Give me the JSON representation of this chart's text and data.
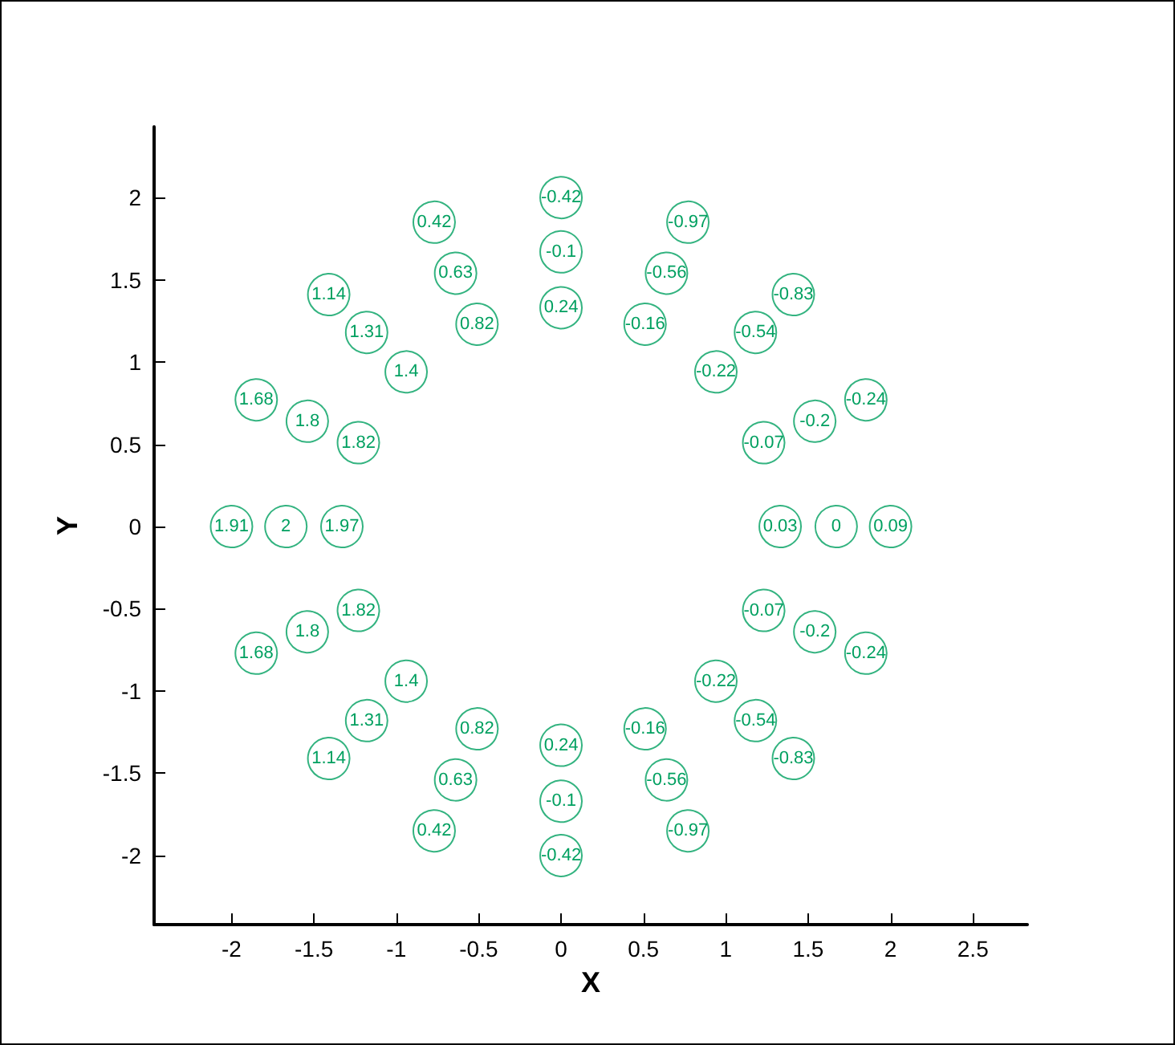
{
  "chart_data": {
    "type": "scatter",
    "xlabel": "X",
    "ylabel": "Y",
    "xlim": [
      -2.47,
      2.83
    ],
    "ylim": [
      -2.42,
      2.43
    ],
    "xticks": [
      -2,
      -1.5,
      -1,
      -0.5,
      0,
      0.5,
      1,
      1.5,
      2,
      2.5
    ],
    "yticks": [
      -2,
      -1.5,
      -1,
      -0.5,
      0,
      0.5,
      1,
      1.5,
      2
    ],
    "grid": false,
    "marker": "circle",
    "series": [
      {
        "color": "#00a060",
        "x": [
          1.33,
          1.67,
          2,
          1.23,
          1.54,
          1.85,
          0.94,
          1.18,
          1.41,
          0.51,
          0.64,
          0.77,
          0,
          0,
          0,
          -0.51,
          -0.64,
          -0.77,
          -0.94,
          -1.18,
          -1.41,
          -1.23,
          -1.54,
          -1.85,
          -1.33,
          -1.67,
          -2,
          -1.23,
          -1.54,
          -1.85,
          -0.94,
          -1.18,
          -1.41,
          -0.51,
          -0.64,
          -0.77,
          0,
          0,
          0,
          0.51,
          0.64,
          0.77,
          0.94,
          1.18,
          1.41,
          1.23,
          1.54,
          1.85
        ],
        "values": [
          0,
          0,
          0,
          0.51,
          0.64,
          0.77,
          0.94,
          1.18,
          1.41,
          1.23,
          1.54,
          1.85,
          1.33,
          1.67,
          2,
          1.23,
          1.54,
          1.85,
          0.94,
          1.18,
          1.41,
          0.51,
          0.64,
          0.77,
          0,
          0,
          0,
          -0.51,
          -0.64,
          -0.77,
          -0.94,
          -1.18,
          -1.41,
          -1.23,
          -1.54,
          -1.85,
          -1.33,
          -1.67,
          -2,
          -1.23,
          -1.54,
          -1.85,
          -0.94,
          -1.18,
          -1.41,
          -0.51,
          -0.64,
          -0.77
        ]
      }
    ],
    "annotations": [
      {
        "text": "0.03",
        "x": 1.33,
        "y": 0
      },
      {
        "text": "0",
        "x": 1.67,
        "y": 0
      },
      {
        "text": "0.09",
        "x": 2,
        "y": 0
      },
      {
        "text": "-0.07",
        "x": 1.23,
        "y": 0.51
      },
      {
        "text": "-0.2",
        "x": 1.54,
        "y": 0.64
      },
      {
        "text": "-0.24",
        "x": 1.85,
        "y": 0.77
      },
      {
        "text": "-0.22",
        "x": 0.94,
        "y": 0.94
      },
      {
        "text": "-0.54",
        "x": 1.18,
        "y": 1.18
      },
      {
        "text": "-0.83",
        "x": 1.41,
        "y": 1.41
      },
      {
        "text": "-0.16",
        "x": 0.51,
        "y": 1.23
      },
      {
        "text": "-0.56",
        "x": 0.64,
        "y": 1.54
      },
      {
        "text": "-0.97",
        "x": 0.77,
        "y": 1.85
      },
      {
        "text": "0.24",
        "x": 0,
        "y": 1.33
      },
      {
        "text": "-0.1",
        "x": 0,
        "y": 1.67
      },
      {
        "text": "-0.42",
        "x": 0,
        "y": 2
      },
      {
        "text": "0.82",
        "x": -0.51,
        "y": 1.23
      },
      {
        "text": "0.63",
        "x": -0.64,
        "y": 1.54
      },
      {
        "text": "0.42",
        "x": -0.77,
        "y": 1.85
      },
      {
        "text": "1.4",
        "x": -0.94,
        "y": 0.94
      },
      {
        "text": "1.31",
        "x": -1.18,
        "y": 1.18
      },
      {
        "text": "1.14",
        "x": -1.41,
        "y": 1.41
      },
      {
        "text": "1.82",
        "x": -1.23,
        "y": 0.51
      },
      {
        "text": "1.8",
        "x": -1.54,
        "y": 0.64
      },
      {
        "text": "1.68",
        "x": -1.85,
        "y": 0.77
      },
      {
        "text": "1.97",
        "x": -1.33,
        "y": 0
      },
      {
        "text": "2",
        "x": -1.67,
        "y": 0
      },
      {
        "text": "1.91",
        "x": -2,
        "y": 0
      },
      {
        "text": "1.82",
        "x": -1.23,
        "y": -0.51
      },
      {
        "text": "1.8",
        "x": -1.54,
        "y": -0.64
      },
      {
        "text": "1.68",
        "x": -1.85,
        "y": -0.77
      },
      {
        "text": "1.4",
        "x": -0.94,
        "y": -0.94
      },
      {
        "text": "1.31",
        "x": -1.18,
        "y": -1.18
      },
      {
        "text": "1.14",
        "x": -1.41,
        "y": -1.41
      },
      {
        "text": "0.82",
        "x": -0.51,
        "y": -1.23
      },
      {
        "text": "0.63",
        "x": -0.64,
        "y": -1.54
      },
      {
        "text": "0.42",
        "x": -0.77,
        "y": -1.85
      },
      {
        "text": "0.24",
        "x": 0,
        "y": -1.33
      },
      {
        "text": "-0.1",
        "x": 0,
        "y": -1.67
      },
      {
        "text": "-0.42",
        "x": 0,
        "y": -2
      },
      {
        "text": "-0.16",
        "x": 0.51,
        "y": -1.23
      },
      {
        "text": "-0.56",
        "x": 0.64,
        "y": -1.54
      },
      {
        "text": "-0.97",
        "x": 0.77,
        "y": -1.85
      },
      {
        "text": "-0.22",
        "x": 0.94,
        "y": -0.94
      },
      {
        "text": "-0.54",
        "x": 1.18,
        "y": -1.18
      },
      {
        "text": "-0.83",
        "x": 1.41,
        "y": -1.41
      },
      {
        "text": "-0.07",
        "x": 1.23,
        "y": -0.51
      },
      {
        "text": "-0.2",
        "x": 1.54,
        "y": -0.64
      },
      {
        "text": "-0.24",
        "x": 1.85,
        "y": -0.77
      }
    ]
  }
}
